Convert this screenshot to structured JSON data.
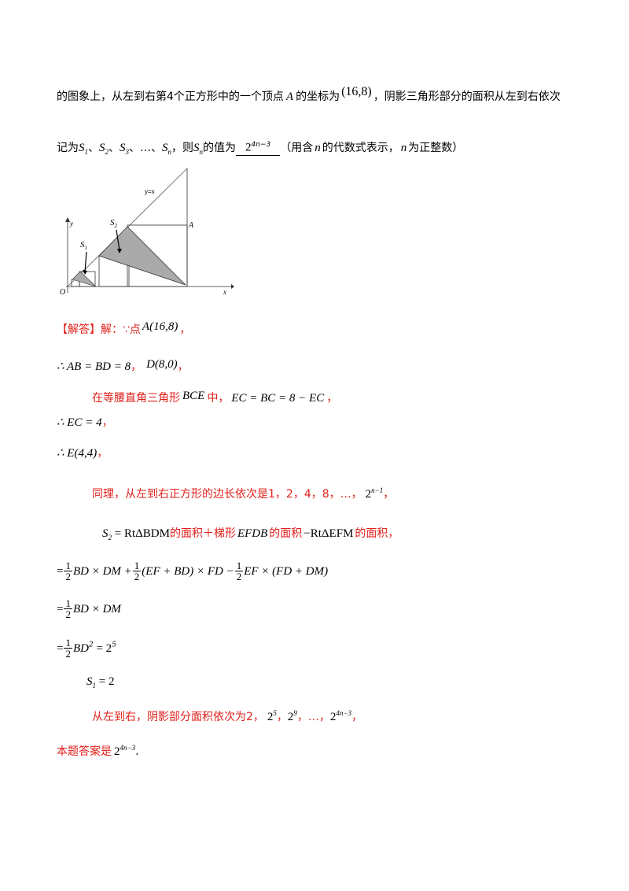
{
  "problem": {
    "line1_a": "的图象上，从左到右第",
    "line1_num": "4",
    "line1_b": "个正方形中的一个顶点",
    "line1_var": "A",
    "line1_c": "的坐标为",
    "line1_coord": "(16,8)",
    "line1_d": "，阴影三角形部分的面积从左到右依次",
    "line2_a": "记为",
    "s1": "S",
    "s1_sub": "1",
    "sep": "、",
    "s2": "S",
    "s2_sub": "2",
    "s3": "S",
    "s3_sub": "3",
    "dots": "…",
    "sn": "S",
    "sn_sub": "n",
    "line2_b": "，则",
    "line2_c": "的值为",
    "answer_base": "2",
    "answer_exp": "4n−3",
    "line2_d": "（用含",
    "var_n": "n",
    "line2_e": "的代数式表示，",
    "var_n2": "n",
    "line2_f": "为正整数）"
  },
  "figure": {
    "label_yx": "y=x",
    "label_y": "y",
    "label_x": "x",
    "label_o": "O",
    "label_a": "A",
    "label_s1": "S",
    "label_s1_sub": "1",
    "label_s2": "S",
    "label_s2_sub": "2"
  },
  "solution": {
    "heading": "【解答】",
    "l1_a": "解：∵点",
    "l1_pt": "A(16,8)",
    "comma": "，",
    "l2": "∴ AB = BD = 8",
    "l2_d": "D(8,0)",
    "l3_a": "在等腰直角三角形",
    "l3_var": "BCE",
    "l3_b": "中，",
    "l3_eq": "EC = BC = 8 − EC",
    "l4": "∴ EC = 4",
    "l5": "∴ E(4,4)",
    "l6_a": "同理，从左到右正方形的边长依次是",
    "l6_vals": "1，2，4，8，…，",
    "l6_pow_base": "2",
    "l6_pow_exp": "n−1",
    "l7_s2": "S",
    "l7_s2_sub": "2",
    "l7_eq": " = RtΔBDM",
    "l7_a": "的面积＋梯形",
    "l7_var": "EFDB",
    "l7_b": "的面积",
    "l7_c": "−RtΔEFM",
    "l7_d": "的面积，",
    "l8_a": "BD × DM +",
    "l8_b": "(EF + BD) × FD −",
    "l8_c": "EF × (FD + DM)",
    "l9": "BD × DM",
    "l10_a": "BD",
    "l10_b": " = 2",
    "l10_exp": "5",
    "l11_s": "S",
    "l11_sub": "1",
    "l11_eq": " = 2",
    "l12_a": "从左到右，阴影部分面积依次为",
    "l12_v1": "2，",
    "l12_v2b": "2",
    "l12_v2e": "5",
    "l12_v3b": "2",
    "l12_v3e": "9",
    "l12_dots": "，…，",
    "l12_v4b": "2",
    "l12_v4e": "4n−3",
    "l13_a": "本题答案是",
    "l13_b": "2",
    "l13_e": "4n−3",
    "period": "."
  }
}
